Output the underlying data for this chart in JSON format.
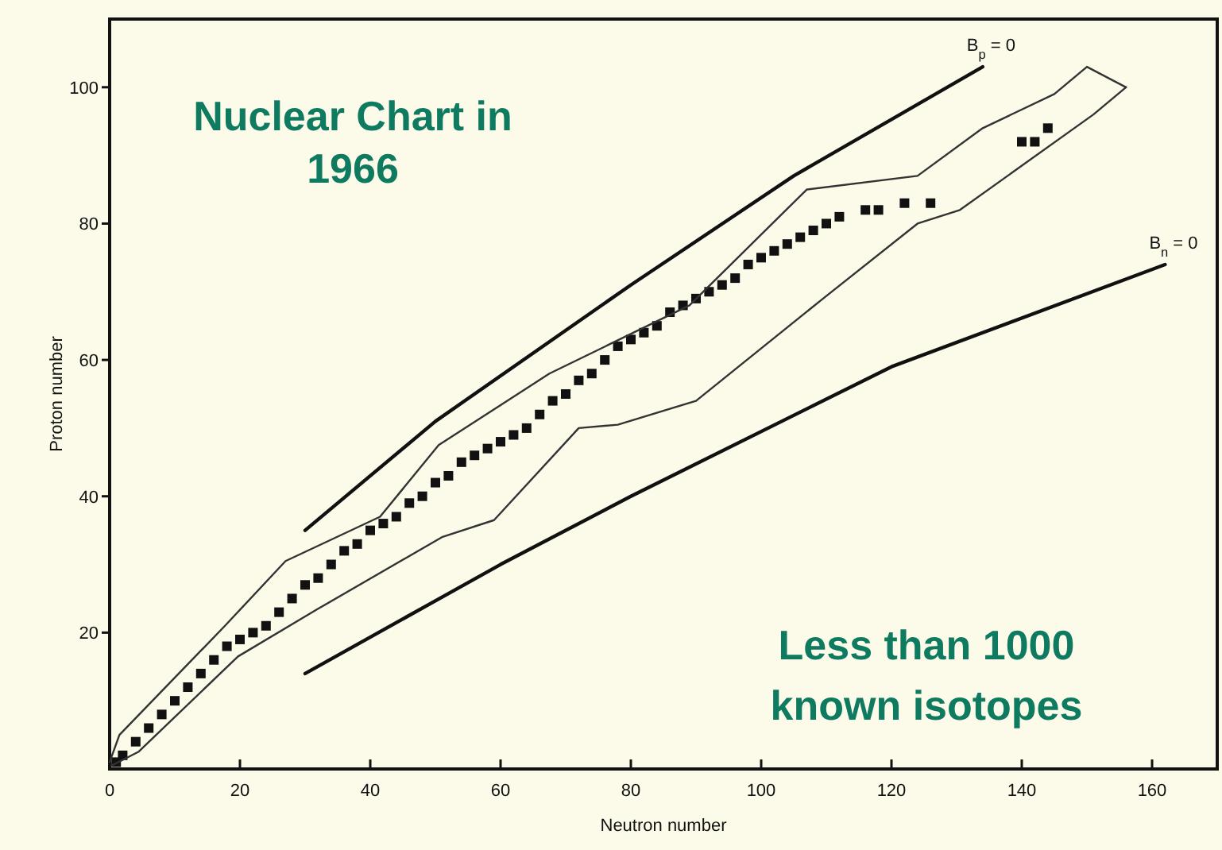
{
  "chart_data": {
    "type": "scatter",
    "title": "Nuclear Chart in 1966",
    "xlabel": "Neutron number",
    "ylabel": "Proton number",
    "annotations": [
      "Less than 1000 known isotopes"
    ],
    "xlim": [
      0,
      170
    ],
    "ylim": [
      0,
      110
    ],
    "xticks": [
      0,
      20,
      40,
      60,
      80,
      100,
      120,
      140,
      160
    ],
    "yticks": [
      20,
      40,
      60,
      80,
      100
    ],
    "grid": false,
    "series": [
      {
        "marker": "square",
        "color": "#111111",
        "x": [
          1,
          2,
          4,
          6,
          8,
          10,
          12,
          14,
          16,
          18,
          20,
          22,
          24,
          26,
          28,
          30,
          32,
          34,
          36,
          38,
          40,
          42,
          44,
          46,
          48,
          50,
          52,
          54,
          56,
          58,
          60,
          62,
          64,
          66,
          68,
          70,
          72,
          74,
          76,
          78,
          80,
          82,
          84,
          86,
          88,
          90,
          92,
          94,
          96,
          98,
          100,
          102,
          104,
          106,
          108,
          110,
          112,
          116,
          118,
          122,
          126,
          140,
          142,
          144
        ],
        "values": [
          1,
          2,
          4,
          6,
          8,
          10,
          12,
          14,
          16,
          18,
          19,
          20,
          21,
          23,
          25,
          27,
          28,
          30,
          32,
          33,
          35,
          36,
          37,
          39,
          40,
          42,
          43,
          45,
          46,
          47,
          48,
          49,
          50,
          52,
          54,
          55,
          57,
          58,
          60,
          62,
          63,
          64,
          65,
          67,
          68,
          69,
          70,
          71,
          72,
          74,
          75,
          76,
          77,
          78,
          79,
          80,
          81,
          82,
          82,
          83,
          83,
          92,
          92,
          94
        ]
      },
      {
        "type": "line",
        "color": "#333333",
        "x": [
          0,
          1.5,
          17.7,
          27,
          41.5,
          50.5,
          67.5,
          89,
          107,
          124,
          134,
          145,
          150,
          156
        ],
        "values": [
          1,
          5,
          21,
          30.5,
          37,
          47.5,
          58,
          68,
          85,
          87,
          94,
          99,
          103,
          100
        ]
      },
      {
        "type": "line",
        "color": "#333333",
        "x": [
          0.3,
          4.4,
          19.7,
          32,
          51,
          59,
          72,
          78,
          90,
          109.5,
          124,
          130.5,
          151,
          156
        ],
        "values": [
          0.5,
          2.5,
          16.5,
          23.5,
          34,
          36.5,
          50,
          50.5,
          54,
          69,
          80,
          82,
          96,
          100
        ]
      },
      {
        "type": "line",
        "name": "B$_{p}$ = 0",
        "color": "#111111",
        "x": [
          30,
          50,
          80,
          105,
          134
        ],
        "values": [
          35,
          51,
          71,
          87,
          103
        ]
      },
      {
        "type": "line",
        "name": "B$_{n}$ = 0",
        "color": "#111111",
        "x": [
          30,
          60,
          80,
          120,
          162
        ],
        "values": [
          14,
          30,
          40,
          59,
          74
        ]
      }
    ]
  }
}
